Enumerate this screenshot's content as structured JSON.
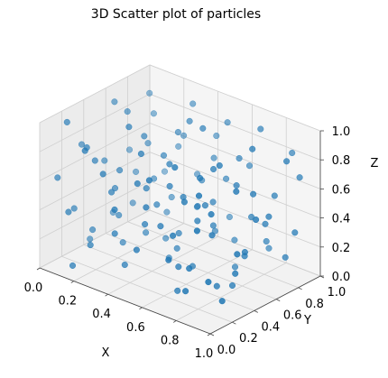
{
  "chart_data": {
    "type": "scatter",
    "projection": "3d",
    "title": "3D Scatter plot of particles",
    "xlabel": "X",
    "ylabel": "Y",
    "zlabel": "Z",
    "xlim": [
      0,
      1
    ],
    "ylim": [
      0,
      1
    ],
    "zlim": [
      0,
      1
    ],
    "grid": true,
    "marker_color": "#1f77b4",
    "x_ticks": [
      "0.0",
      "0.2",
      "0.4",
      "0.6",
      "0.8",
      "1.0"
    ],
    "y_ticks": [
      "0.0",
      "0.2",
      "0.4",
      "0.6",
      "0.8",
      "1.0"
    ],
    "z_ticks": [
      "0.0",
      "0.2",
      "0.4",
      "0.6",
      "0.8",
      "1.0"
    ],
    "points": [
      [
        0.05,
        0.92,
        0.86
      ],
      [
        0.12,
        0.85,
        0.78
      ],
      [
        0.2,
        0.95,
        0.55
      ],
      [
        0.33,
        0.88,
        0.93
      ],
      [
        0.41,
        0.97,
        0.71
      ],
      [
        0.52,
        0.9,
        0.88
      ],
      [
        0.63,
        0.93,
        0.62
      ],
      [
        0.74,
        0.86,
        0.95
      ],
      [
        0.86,
        0.96,
        0.8
      ],
      [
        0.95,
        0.89,
        0.7
      ],
      [
        0.08,
        0.75,
        0.4
      ],
      [
        0.17,
        0.72,
        0.65
      ],
      [
        0.27,
        0.78,
        0.3
      ],
      [
        0.36,
        0.7,
        0.82
      ],
      [
        0.46,
        0.76,
        0.51
      ],
      [
        0.57,
        0.71,
        0.23
      ],
      [
        0.66,
        0.79,
        0.74
      ],
      [
        0.77,
        0.73,
        0.41
      ],
      [
        0.88,
        0.77,
        0.59
      ],
      [
        0.97,
        0.74,
        0.88
      ],
      [
        0.03,
        0.62,
        0.15
      ],
      [
        0.14,
        0.58,
        0.91
      ],
      [
        0.25,
        0.65,
        0.47
      ],
      [
        0.34,
        0.6,
        0.69
      ],
      [
        0.45,
        0.55,
        0.12
      ],
      [
        0.55,
        0.63,
        0.96
      ],
      [
        0.65,
        0.57,
        0.36
      ],
      [
        0.76,
        0.61,
        0.67
      ],
      [
        0.84,
        0.56,
        0.24
      ],
      [
        0.93,
        0.64,
        0.52
      ],
      [
        0.07,
        0.48,
        0.58
      ],
      [
        0.18,
        0.44,
        0.27
      ],
      [
        0.29,
        0.5,
        0.84
      ],
      [
        0.39,
        0.46,
        0.43
      ],
      [
        0.49,
        0.42,
        0.77
      ],
      [
        0.58,
        0.49,
        0.08
      ],
      [
        0.68,
        0.45,
        0.56
      ],
      [
        0.79,
        0.41,
        0.9
      ],
      [
        0.9,
        0.47,
        0.33
      ],
      [
        0.99,
        0.43,
        0.61
      ],
      [
        0.02,
        0.35,
        0.72
      ],
      [
        0.11,
        0.31,
        0.19
      ],
      [
        0.23,
        0.37,
        0.63
      ],
      [
        0.31,
        0.33,
        0.98
      ],
      [
        0.43,
        0.29,
        0.38
      ],
      [
        0.53,
        0.36,
        0.66
      ],
      [
        0.62,
        0.3,
        0.17
      ],
      [
        0.72,
        0.34,
        0.81
      ],
      [
        0.83,
        0.28,
        0.49
      ],
      [
        0.94,
        0.32,
        0.26
      ],
      [
        0.06,
        0.22,
        0.35
      ],
      [
        0.16,
        0.18,
        0.83
      ],
      [
        0.26,
        0.25,
        0.54
      ],
      [
        0.37,
        0.2,
        0.11
      ],
      [
        0.47,
        0.16,
        0.73
      ],
      [
        0.56,
        0.23,
        0.45
      ],
      [
        0.67,
        0.19,
        0.92
      ],
      [
        0.78,
        0.15,
        0.29
      ],
      [
        0.87,
        0.21,
        0.68
      ],
      [
        0.96,
        0.17,
        0.14
      ],
      [
        0.04,
        0.1,
        0.6
      ],
      [
        0.13,
        0.06,
        0.42
      ],
      [
        0.22,
        0.12,
        0.21
      ],
      [
        0.32,
        0.08,
        0.76
      ],
      [
        0.42,
        0.03,
        0.58
      ],
      [
        0.51,
        0.09,
        0.32
      ],
      [
        0.61,
        0.05,
        0.86
      ],
      [
        0.71,
        0.11,
        0.5
      ],
      [
        0.81,
        0.07,
        0.18
      ],
      [
        0.91,
        0.02,
        0.66
      ],
      [
        0.1,
        0.98,
        0.32
      ],
      [
        0.21,
        0.83,
        0.15
      ],
      [
        0.3,
        0.68,
        0.07
      ],
      [
        0.4,
        0.81,
        0.28
      ],
      [
        0.5,
        0.66,
        0.39
      ],
      [
        0.6,
        0.84,
        0.13
      ],
      [
        0.7,
        0.69,
        0.05
      ],
      [
        0.8,
        0.82,
        0.22
      ],
      [
        0.89,
        0.67,
        0.44
      ],
      [
        0.98,
        0.8,
        0.37
      ],
      [
        0.09,
        0.54,
        0.97
      ],
      [
        0.19,
        0.39,
        0.48
      ],
      [
        0.28,
        0.53,
        0.16
      ],
      [
        0.38,
        0.38,
        0.57
      ],
      [
        0.48,
        0.52,
        0.25
      ],
      [
        0.59,
        0.39,
        0.6
      ],
      [
        0.69,
        0.51,
        0.79
      ],
      [
        0.8,
        0.37,
        0.09
      ],
      [
        0.91,
        0.53,
        0.71
      ],
      [
        0.99,
        0.26,
        0.44
      ],
      [
        0.15,
        0.27,
        0.7
      ],
      [
        0.24,
        0.04,
        0.9
      ],
      [
        0.35,
        0.14,
        0.34
      ],
      [
        0.44,
        0.24,
        0.89
      ],
      [
        0.54,
        0.13,
        0.61
      ],
      [
        0.64,
        0.26,
        0.03
      ],
      [
        0.73,
        0.04,
        0.37
      ],
      [
        0.85,
        0.13,
        0.83
      ],
      [
        0.95,
        0.06,
        0.31
      ],
      [
        0.01,
        0.8,
        0.5
      ],
      [
        0.12,
        0.66,
        0.24
      ],
      [
        0.21,
        0.43,
        0.1
      ],
      [
        0.33,
        0.92,
        0.43
      ],
      [
        0.44,
        0.68,
        0.94
      ],
      [
        0.57,
        0.81,
        0.55
      ],
      [
        0.66,
        0.41,
        0.46
      ],
      [
        0.75,
        0.92,
        0.11
      ],
      [
        0.86,
        0.6,
        0.97
      ],
      [
        0.92,
        0.36,
        0.8
      ],
      [
        0.03,
        0.41,
        0.05
      ],
      [
        0.18,
        0.02,
        0.09
      ],
      [
        0.27,
        0.89,
        0.68
      ],
      [
        0.39,
        0.57,
        0.02
      ],
      [
        0.5,
        0.95,
        0.2
      ],
      [
        0.61,
        0.63,
        0.48
      ],
      [
        0.7,
        0.23,
        0.68
      ],
      [
        0.82,
        0.48,
        0.06
      ],
      [
        0.93,
        0.79,
        0.18
      ],
      [
        0.07,
        0.14,
        0.98
      ],
      [
        0.46,
        0.87,
        0.62
      ]
    ]
  }
}
